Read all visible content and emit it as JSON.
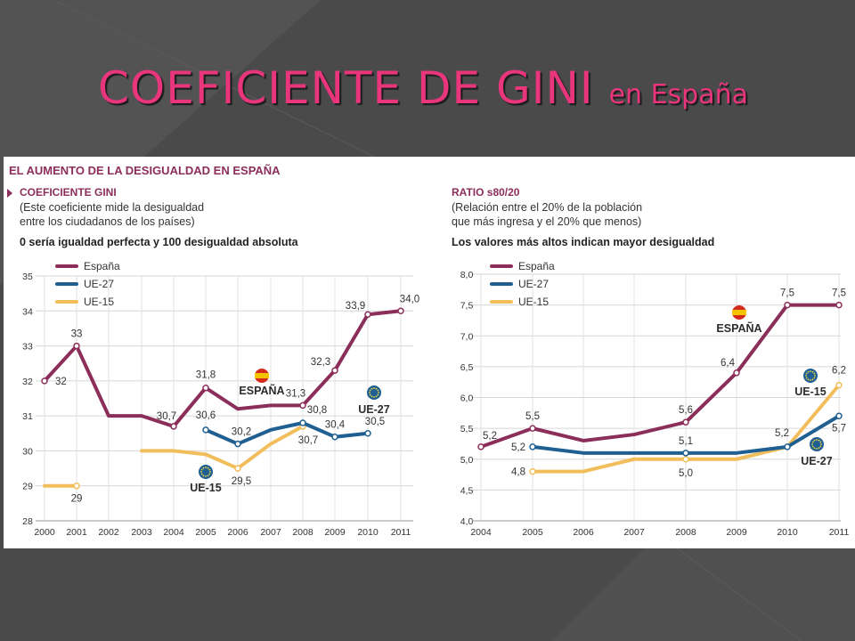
{
  "slide": {
    "title": "COEFICIENTE DE GINI",
    "subtitle": "en España"
  },
  "figure": {
    "heading": "EL AUMENTO DE LA DESIGUALDAD EN ESPAÑA"
  },
  "colors": {
    "espana": "#8c2e5a",
    "ue27": "#1f5f91",
    "ue15": "#f2be5c",
    "title_pink": "#e8357c"
  },
  "left_panel": {
    "title": "COEFICIENTE GINI",
    "desc_line1": "(Este coeficiente mide la desigualdad",
    "desc_line2": "entre los ciudadanos de los países)",
    "note": "0 sería igualdad perfecta y 100 desigualdad absoluta"
  },
  "right_panel": {
    "title": "RATIO s80/20",
    "desc_line1": "(Relación entre el 20% de la población",
    "desc_line2": "que más ingresa y el 20% que menos)",
    "note": "Los valores más altos indican mayor desigualdad"
  },
  "chart_data": [
    {
      "type": "line",
      "title": "COEFICIENTE GINI",
      "x": [
        2000,
        2001,
        2002,
        2003,
        2004,
        2005,
        2006,
        2007,
        2008,
        2009,
        2010,
        2011
      ],
      "ylim": [
        28,
        35
      ],
      "yticks": [
        "28",
        "29",
        "30",
        "31",
        "32",
        "33",
        "34",
        "35"
      ],
      "grid": true,
      "legend_position": "top-left",
      "series": [
        {
          "name": "España",
          "values": [
            32,
            33,
            31,
            31,
            30.7,
            31.8,
            31.2,
            31.3,
            31.3,
            32.3,
            33.9,
            34.0
          ],
          "labels": [
            "32",
            "33",
            "",
            "",
            "30,7",
            "31,8",
            "",
            "",
            "31,3",
            "32,3",
            "33,9",
            "34,0"
          ]
        },
        {
          "name": "UE-27",
          "values": [
            null,
            null,
            null,
            null,
            null,
            30.6,
            30.2,
            30.6,
            30.8,
            30.4,
            30.5,
            null
          ],
          "labels": [
            "",
            "",
            "",
            "",
            "",
            "30,6",
            "30,2",
            "",
            "30,8",
            "30,4",
            "30,5",
            ""
          ]
        },
        {
          "name": "UE-15",
          "values": [
            29,
            29,
            null,
            30,
            30,
            29.9,
            29.5,
            30.2,
            30.7,
            null,
            null,
            null
          ],
          "labels": [
            "",
            "29",
            "",
            "",
            "",
            "",
            "29,5",
            "",
            "30,7",
            "",
            "",
            ""
          ]
        }
      ],
      "annotations": [
        "ESPAÑA",
        "UE-27",
        "UE-15"
      ]
    },
    {
      "type": "line",
      "title": "RATIO s80/20",
      "x": [
        2004,
        2005,
        2006,
        2007,
        2008,
        2009,
        2010,
        2011
      ],
      "ylim": [
        4.0,
        8.0
      ],
      "yticks": [
        "4,0",
        "4,5",
        "5,0",
        "5,5",
        "6,0",
        "6,5",
        "7,0",
        "7,5",
        "8,0"
      ],
      "grid": true,
      "legend_position": "top-left",
      "series": [
        {
          "name": "España",
          "values": [
            5.2,
            5.5,
            5.3,
            5.4,
            5.6,
            6.4,
            7.5,
            7.5
          ],
          "labels": [
            "5,2",
            "5,5",
            "",
            "",
            "5,6",
            "6,4",
            "7,5",
            "7,5"
          ]
        },
        {
          "name": "UE-27",
          "values": [
            null,
            5.2,
            5.1,
            5.1,
            5.1,
            5.1,
            5.2,
            5.7
          ],
          "labels": [
            "",
            "5,2",
            "",
            "",
            "5,1",
            "",
            "5,2",
            "5,7"
          ]
        },
        {
          "name": "UE-15",
          "values": [
            null,
            4.8,
            4.8,
            5.0,
            5.0,
            5.0,
            5.2,
            6.2
          ],
          "labels": [
            "",
            "4,8",
            "",
            "",
            "5,0",
            "",
            "",
            "6,2"
          ]
        }
      ],
      "annotations": [
        "ESPAÑA",
        "UE-15",
        "UE-27"
      ]
    }
  ]
}
